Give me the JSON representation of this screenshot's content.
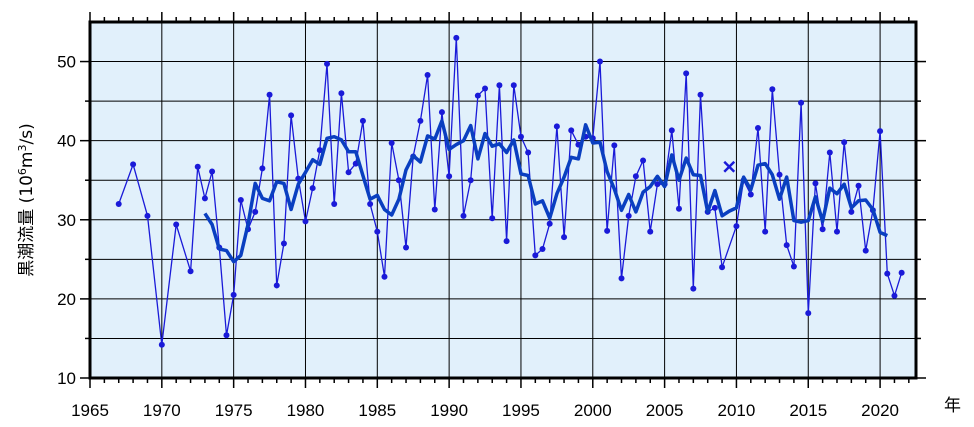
{
  "chart_data": {
    "type": "line",
    "ylabel_main": "黒潮流量 (10",
    "ylabel_sup1": "6",
    "ylabel_mid": "m",
    "ylabel_sup2": "3",
    "ylabel_end": "/s)",
    "xlabel": "年",
    "xlim": [
      1965,
      2022.5
    ],
    "ylim": [
      10,
      55
    ],
    "x_ticks": [
      1965,
      1970,
      1975,
      1980,
      1985,
      1990,
      1995,
      2000,
      2005,
      2010,
      2015,
      2020
    ],
    "y_ticks": [
      10,
      20,
      30,
      40,
      50
    ],
    "grid": true,
    "colors": {
      "background": "#e1f0fb",
      "series": "#1a1ad8",
      "smoothed": "#0a3fc0",
      "grid": "#000000"
    },
    "series": [
      {
        "kind": "points",
        "x": [
          1967.0,
          1968.0,
          1969.0,
          1970.0,
          1971.0,
          1972.0,
          1972.5,
          1973.0,
          1973.5,
          1974.0,
          1974.5,
          1975.0,
          1975.5,
          1976.0,
          1976.5,
          1977.0,
          1977.5,
          1978.0,
          1978.5,
          1979.0,
          1979.5,
          1980.0,
          1980.5,
          1981.0,
          1981.5,
          1982.0,
          1982.5,
          1983.0,
          1983.5,
          1984.0,
          1984.5,
          1985.0,
          1985.5,
          1986.0,
          1986.5,
          1987.0,
          1987.5,
          1988.0,
          1988.5,
          1989.0,
          1989.5,
          1990.0,
          1990.5,
          1991.0,
          1991.5,
          1992.0,
          1992.5,
          1993.0,
          1993.5,
          1994.0,
          1994.5,
          1995.0,
          1995.5,
          1996.0,
          1996.5,
          1997.0,
          1997.5,
          1998.0,
          1998.5,
          1999.0,
          1999.5,
          2000.0,
          2000.5,
          2001.0,
          2001.5,
          2002.0,
          2002.5,
          2003.0,
          2003.5,
          2004.0,
          2004.5,
          2005.0,
          2005.5,
          2006.0,
          2006.5,
          2007.0,
          2007.5,
          2008.0,
          2008.5,
          2009.0,
          2010.0,
          2010.5,
          2011.0,
          2011.5,
          2012.0,
          2012.5,
          2013.0,
          2013.5,
          2014.0,
          2014.5,
          2015.0,
          2015.5,
          2016.0,
          2016.5,
          2017.0,
          2017.5,
          2018.0,
          2018.5,
          2019.0,
          2019.5,
          2020.0,
          2020.5,
          2021.0,
          2021.5
        ],
        "y": [
          32.0,
          37.0,
          30.5,
          14.2,
          29.4,
          23.5,
          36.7,
          32.7,
          36.1,
          26.5,
          15.4,
          20.5,
          32.5,
          28.8,
          31.0,
          36.5,
          45.8,
          21.7,
          27.0,
          43.2,
          35.2,
          29.8,
          34.0,
          38.8,
          49.7,
          32.0,
          46.0,
          36.0,
          37.1,
          42.5,
          32.0,
          28.5,
          22.8,
          39.7,
          35.0,
          26.5,
          38.0,
          42.5,
          48.3,
          31.3,
          43.6,
          35.5,
          53.0,
          30.5,
          35.0,
          45.7,
          46.6,
          30.2,
          47.0,
          27.3,
          47.0,
          40.5,
          38.5,
          25.5,
          26.3,
          29.5,
          41.8,
          27.8,
          41.3,
          39.5,
          40.5,
          40.3,
          50.0,
          28.6,
          39.4,
          22.6,
          30.5,
          35.5,
          37.5,
          28.5,
          34.5,
          34.5,
          41.3,
          31.4,
          48.5,
          21.3,
          45.8,
          31.0,
          31.5,
          24.0,
          29.2,
          35.0,
          33.2,
          41.6,
          28.5,
          46.5,
          35.7,
          26.8,
          24.1,
          44.8,
          18.2,
          34.6,
          28.8,
          38.5,
          28.5,
          39.8,
          31.0,
          34.3,
          26.1,
          31.2,
          41.2,
          23.2,
          20.4,
          23.3
        ]
      },
      {
        "kind": "smoothed",
        "x": [
          1973.0,
          1973.5,
          1974.0,
          1974.5,
          1975.0,
          1975.5,
          1976.0,
          1976.5,
          1977.0,
          1977.5,
          1978.0,
          1978.5,
          1979.0,
          1979.5,
          1980.0,
          1980.5,
          1981.0,
          1981.5,
          1982.0,
          1982.5,
          1983.0,
          1983.5,
          1984.0,
          1984.5,
          1985.0,
          1985.5,
          1986.0,
          1986.5,
          1987.0,
          1987.5,
          1988.0,
          1988.5,
          1989.0,
          1989.5,
          1990.0,
          1990.5,
          1991.0,
          1991.5,
          1992.0,
          1992.5,
          1993.0,
          1993.5,
          1994.0,
          1994.5,
          1995.0,
          1995.5,
          1996.0,
          1996.5,
          1997.0,
          1997.5,
          1998.0,
          1998.5,
          1999.0,
          1999.5,
          2000.0,
          2000.5,
          2001.0,
          2001.5,
          2002.0,
          2002.5,
          2003.0,
          2003.5,
          2004.0,
          2004.5,
          2005.0,
          2005.5,
          2006.0,
          2006.5,
          2007.0,
          2007.5,
          2008.0,
          2008.5,
          2009.0,
          2009.5,
          2010.0,
          2010.5,
          2011.0,
          2011.5,
          2012.0,
          2012.5,
          2013.0,
          2013.5,
          2014.0,
          2014.5,
          2015.0,
          2015.5,
          2016.0,
          2016.5,
          2017.0,
          2017.5,
          2018.0,
          2018.5,
          2019.0,
          2019.5,
          2020.0,
          2020.5
        ],
        "y": [
          30.8,
          29.4,
          26.3,
          26.1,
          24.7,
          25.5,
          29.4,
          34.6,
          32.7,
          32.4,
          34.8,
          34.6,
          31.3,
          34.5,
          36.0,
          37.6,
          37.0,
          40.3,
          40.5,
          40.1,
          38.6,
          38.6,
          35.6,
          32.6,
          33.1,
          31.3,
          30.6,
          32.6,
          36.3,
          38.1,
          37.3,
          40.6,
          40.2,
          42.5,
          38.9,
          39.5,
          40.0,
          41.9,
          37.7,
          40.9,
          39.3,
          39.6,
          38.5,
          40.1,
          35.8,
          35.6,
          32.0,
          32.4,
          30.2,
          33.3,
          35.4,
          37.9,
          37.7,
          42.0,
          39.7,
          39.8,
          36.1,
          33.9,
          31.2,
          33.2,
          31.0,
          33.5,
          34.2,
          35.5,
          34.2,
          38.2,
          35.0,
          37.8,
          35.7,
          35.6,
          31.0,
          33.7,
          30.5,
          31.1,
          31.5,
          35.4,
          33.8,
          36.9,
          37.1,
          35.7,
          32.6,
          35.4,
          29.9,
          29.7,
          29.9,
          32.9,
          29.8,
          34.0,
          33.3,
          34.5,
          31.5,
          32.4,
          32.5,
          31.3,
          28.4,
          28.0
        ]
      },
      {
        "kind": "marker-x",
        "x": [
          2009.5
        ],
        "y": [
          36.7
        ]
      }
    ]
  }
}
